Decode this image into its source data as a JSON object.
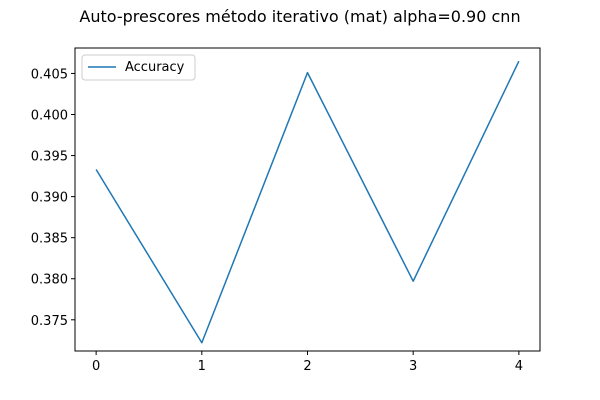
{
  "chart_data": {
    "type": "line",
    "title": "Auto-prescores método iterativo (mat) alpha=0.90 cnn",
    "xlabel": "",
    "ylabel": "",
    "x": [
      0,
      1,
      2,
      3,
      4
    ],
    "series": [
      {
        "name": "Accuracy",
        "color": "#1f77b4",
        "values": [
          0.3933,
          0.3722,
          0.4051,
          0.3797,
          0.4065
        ]
      }
    ],
    "xlim": [
      -0.2,
      4.2
    ],
    "ylim": [
      0.3712,
      0.4081
    ],
    "xticks": [
      0,
      1,
      2,
      3,
      4
    ],
    "xtick_labels": [
      "0",
      "1",
      "2",
      "3",
      "4"
    ],
    "yticks": [
      0.375,
      0.38,
      0.385,
      0.39,
      0.395,
      0.4,
      0.405
    ],
    "ytick_labels": [
      "0.375",
      "0.380",
      "0.385",
      "0.390",
      "0.395",
      "0.400",
      "0.405"
    ],
    "grid": false,
    "legend_position": "upper-left"
  }
}
